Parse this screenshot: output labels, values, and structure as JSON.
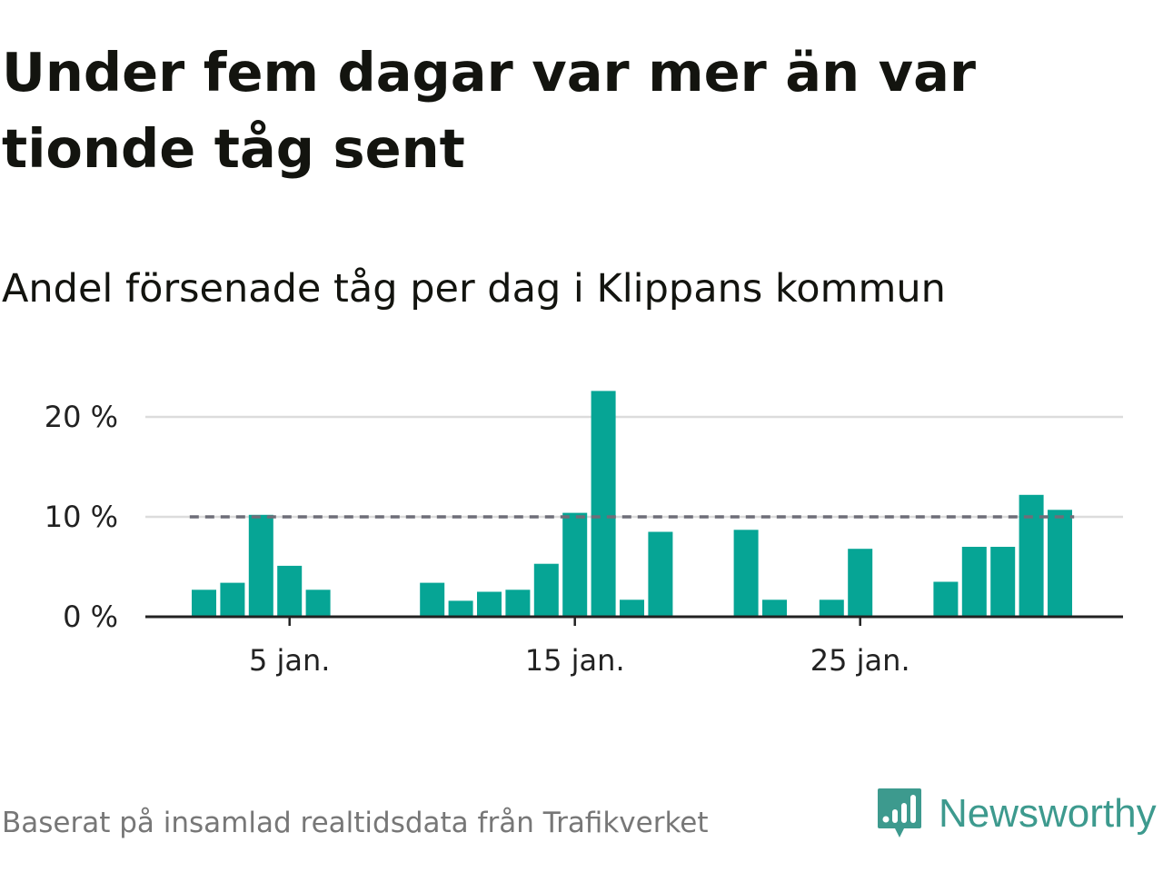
{
  "title": "Under fem dagar var mer än var tionde tåg sent",
  "subtitle": "Andel försenade tåg per dag i Klippans kommun",
  "footer": {
    "source": "Baserat på insamlad realtidsdata från Trafikverket",
    "brand": "Newsworthy",
    "brand_icon": "bar-chart-speech-bubble-icon"
  },
  "colors": {
    "bar": "#06a595",
    "threshold_line": "#6e6e78",
    "gridline": "#dcdcdc",
    "axis": "#222222",
    "brand": "#3d9a8e"
  },
  "chart_data": {
    "type": "bar",
    "x": [
      "2 jan.",
      "3 jan.",
      "4 jan.",
      "5 jan.",
      "6 jan.",
      "7 jan.",
      "8 jan.",
      "9 jan.",
      "10 jan.",
      "11 jan.",
      "12 jan.",
      "13 jan.",
      "14 jan.",
      "15 jan.",
      "16 jan.",
      "17 jan.",
      "18 jan.",
      "19 jan.",
      "20 jan.",
      "21 jan.",
      "22 jan.",
      "23 jan.",
      "24 jan.",
      "25 jan.",
      "26 jan.",
      "27 jan.",
      "28 jan.",
      "29 jan.",
      "30 jan.",
      "31 jan.",
      "1 feb."
    ],
    "values": [
      2.7,
      3.4,
      10.2,
      5.1,
      2.7,
      0,
      0,
      0,
      3.4,
      1.6,
      2.5,
      2.7,
      5.3,
      10.4,
      22.6,
      1.7,
      8.5,
      0,
      0,
      8.7,
      1.7,
      0,
      1.7,
      6.8,
      0,
      0,
      3.5,
      7.0,
      7.0,
      12.2,
      10.7
    ],
    "threshold": 10,
    "ylim": [
      0,
      23
    ],
    "yticks": [
      0,
      10,
      20
    ],
    "ytick_labels": [
      "0 %",
      "10 %",
      "20 %"
    ],
    "xticks": [
      "5 jan.",
      "15 jan.",
      "25 jan."
    ],
    "grid": true,
    "legend": "none"
  }
}
